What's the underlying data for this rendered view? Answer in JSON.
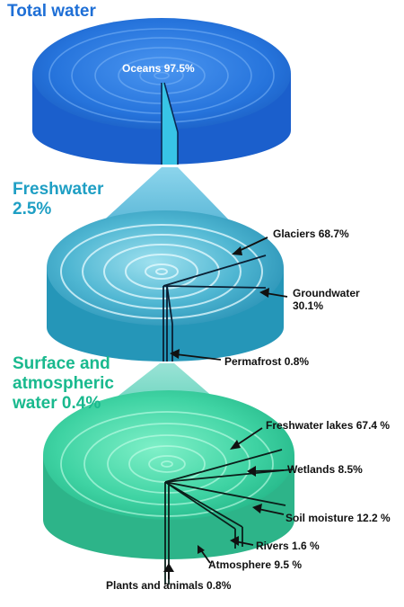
{
  "sections": {
    "total": {
      "title": "Total water",
      "accent": "#1e6fd6"
    },
    "freshwater": {
      "title_line1": "Freshwater",
      "title_line2": "2.5%",
      "accent": "#1f9fc4"
    },
    "surface": {
      "title_line1": "Surface and",
      "title_line2": "atmospheric",
      "title_line3": "water 0.4%",
      "accent": "#19b98e"
    }
  },
  "labels": {
    "oceans": "Oceans 97.5%",
    "glaciers": "Glaciers 68.7%",
    "groundwater_line1": "Groundwater",
    "groundwater_line2": "30.1%",
    "permafrost": "Permafrost 0.8%",
    "freshwater_lakes": "Freshwater lakes 67.4 %",
    "wetlands": "Wetlands 8.5%",
    "soil_moisture": "Soil moisture 12.2 %",
    "rivers": "Rivers 1.6 %",
    "atmosphere": "Atmosphere 9.5 %",
    "plants_animals": "Plants and animals 0.8%"
  },
  "colors": {
    "disc_total": "#2a78e0",
    "disc_fresh": "#2aa4c6",
    "disc_surface": "#2fcf9e",
    "cone_fresh": "#46b3d6",
    "cone_surface": "#5ccfbf"
  }
}
